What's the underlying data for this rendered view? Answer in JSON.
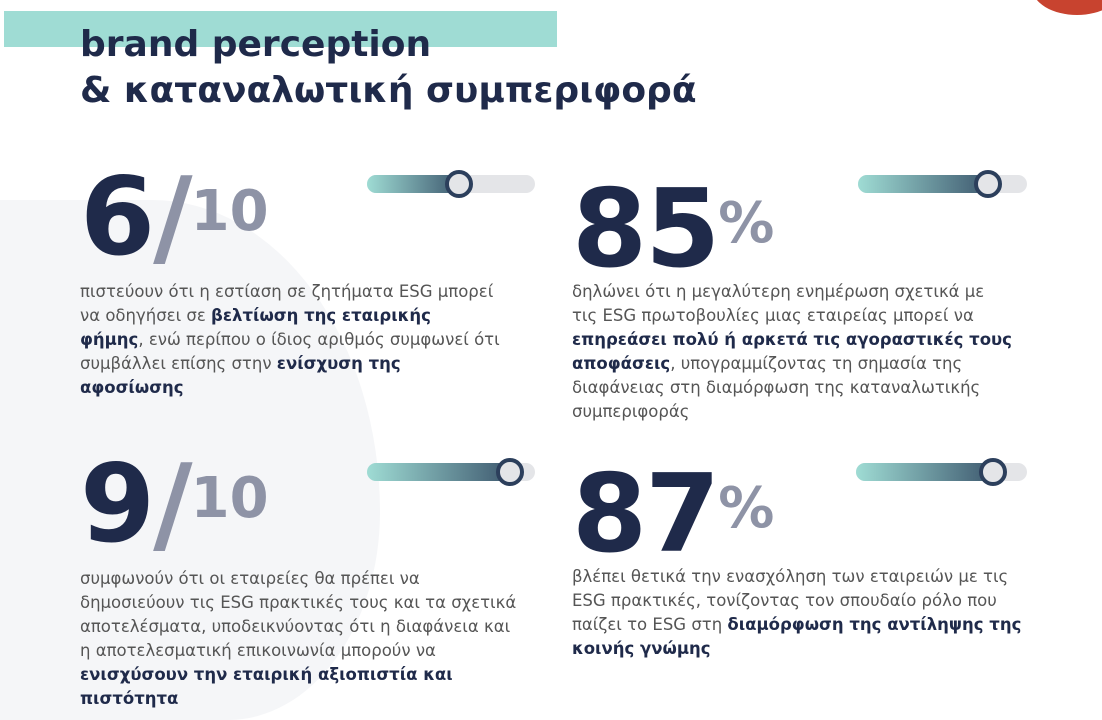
{
  "header": {
    "title_line1": "brand perception",
    "title_line2": "& καταναλωτική συμπεριφορά"
  },
  "colors": {
    "navy": "#1f2a4a",
    "gray": "#8e93a6",
    "teal": "#9fdcd4",
    "red": "#c8432f"
  },
  "stats": [
    {
      "main": "6",
      "slash": "/",
      "sup": "10",
      "slider_level": 0.55,
      "segments": [
        "πιστεύουν ότι η εστίαση σε ζητήματα ESG μπορεί να οδηγήσει σε ",
        "βελτίωση της εταιρικής φήμης",
        ", ενώ περίπου ο ίδιος αριθμός συμφωνεί ότι συμβάλλει επίσης στην ",
        "ενίσχυση της αφοσίωσης"
      ]
    },
    {
      "main": "85",
      "slash": "",
      "sup": "%",
      "slider_level": 0.77,
      "segments": [
        "δηλώνει ότι η μεγαλύτερη ενημέρωση σχετικά με τις ESG πρωτοβουλίες μιας εταιρείας μπορεί να ",
        "επηρεάσει πολύ ή αρκετά τις αγοραστικές τους αποφάσεις",
        ", υπογραμμίζοντας τη σημασία της διαφάνειας στη διαμόρφωση της καταναλωτικής συμπεριφοράς",
        ""
      ]
    },
    {
      "main": "9",
      "slash": "/",
      "sup": "10",
      "slider_level": 0.85,
      "segments": [
        "συμφωνούν ότι οι εταιρείες θα πρέπει να δημοσιεύουν τις ESG πρακτικές τους και τα σχετικά αποτελέσματα, υποδεικνύοντας ότι η διαφάνεια και η αποτελεσματική επικοινωνία μπορούν να ",
        "ενισχύσουν την εταιρική αξιοπιστία και πιστότητα",
        "",
        ""
      ]
    },
    {
      "main": "87",
      "slash": "",
      "sup": "%",
      "slider_level": 0.8,
      "segments": [
        "βλέπει θετικά την ενασχόληση των εταιρειών με τις ESG πρακτικές, τονίζοντας τον σπουδαίο ρόλο που παίζει το ESG στη ",
        "διαμόρφωση της αντίληψης της κοινής γνώμης",
        "",
        ""
      ]
    }
  ]
}
